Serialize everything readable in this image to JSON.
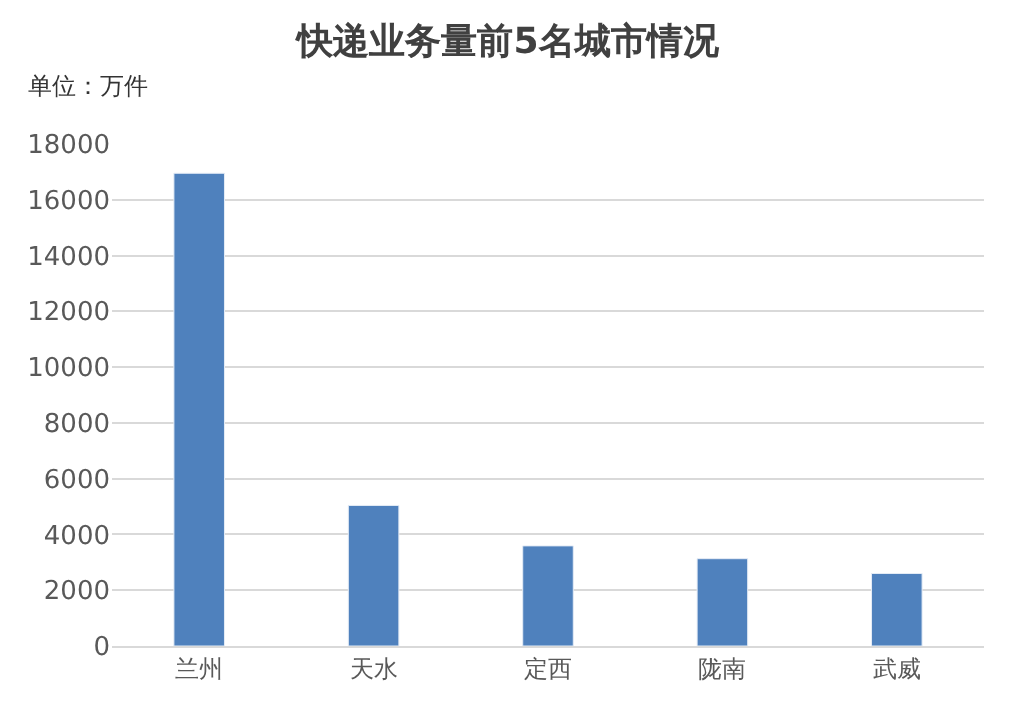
{
  "chart_data": {
    "type": "bar",
    "title": "快递业务量前5名城市情况",
    "ylabel": "单位：万件",
    "categories": [
      "兰州",
      "天水",
      "定西",
      "陇南",
      "武威"
    ],
    "values": [
      16950,
      5040,
      3590,
      3130,
      2600
    ],
    "color": "#4f81bd",
    "ylim": [
      0,
      18000
    ],
    "yticks": [
      0,
      2000,
      4000,
      6000,
      8000,
      10000,
      12000,
      14000,
      16000,
      18000
    ],
    "grid": "y",
    "legend": false
  }
}
